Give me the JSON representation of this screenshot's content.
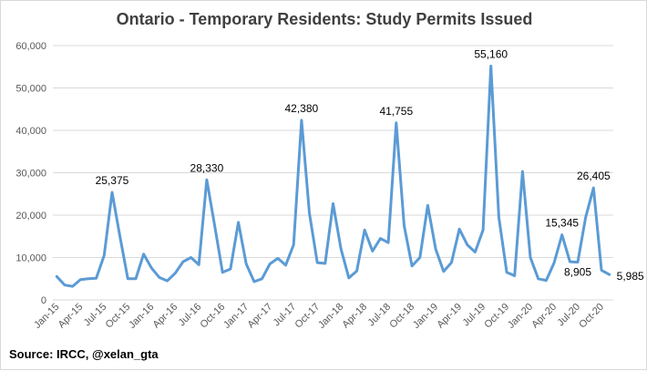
{
  "source_note": "Source: IRCC, @xelan_gta",
  "chart_data": {
    "type": "line",
    "title": "Ontario - Temporary Residents: Study Permits Issued",
    "xlabel": "",
    "ylabel": "",
    "ylim": [
      0,
      60000
    ],
    "yticks": [
      "0",
      "10,000",
      "20,000",
      "30,000",
      "40,000",
      "50,000",
      "60,000"
    ],
    "grid": true,
    "line_color": "#5b9bd5",
    "x": [
      "Jan-15",
      "Feb-15",
      "Mar-15",
      "Apr-15",
      "May-15",
      "Jun-15",
      "Jul-15",
      "Aug-15",
      "Sep-15",
      "Oct-15",
      "Nov-15",
      "Dec-15",
      "Jan-16",
      "Feb-16",
      "Mar-16",
      "Apr-16",
      "May-16",
      "Jun-16",
      "Jul-16",
      "Aug-16",
      "Sep-16",
      "Oct-16",
      "Nov-16",
      "Dec-16",
      "Jan-17",
      "Feb-17",
      "Mar-17",
      "Apr-17",
      "May-17",
      "Jun-17",
      "Jul-17",
      "Aug-17",
      "Sep-17",
      "Oct-17",
      "Nov-17",
      "Dec-17",
      "Jan-18",
      "Feb-18",
      "Mar-18",
      "Apr-18",
      "May-18",
      "Jun-18",
      "Jul-18",
      "Aug-18",
      "Sep-18",
      "Oct-18",
      "Nov-18",
      "Dec-18",
      "Jan-19",
      "Feb-19",
      "Mar-19",
      "Apr-19",
      "May-19",
      "Jun-19",
      "Jul-19",
      "Aug-19",
      "Sep-19",
      "Oct-19",
      "Nov-19",
      "Dec-19",
      "Jan-20",
      "Feb-20",
      "Mar-20",
      "Apr-20",
      "May-20",
      "Jun-20",
      "Jul-20",
      "Aug-20",
      "Sep-20",
      "Oct-20",
      "Nov-20"
    ],
    "xticks": [
      "Jan-15",
      "Apr-15",
      "Jul-15",
      "Oct-15",
      "Jan-16",
      "Apr-16",
      "Jul-16",
      "Oct-16",
      "Jan-17",
      "Apr-17",
      "Jul-17",
      "Oct-17",
      "Jan-18",
      "Apr-18",
      "Jul-18",
      "Oct-18",
      "Jan-19",
      "Apr-19",
      "Jul-19",
      "Oct-19",
      "Jan-20",
      "Apr-20",
      "Jul-20",
      "Oct-20"
    ],
    "values": [
      5500,
      3500,
      3200,
      4800,
      5000,
      5100,
      10500,
      25375,
      15000,
      5000,
      5000,
      10800,
      7500,
      5300,
      4500,
      6300,
      9000,
      10000,
      8300,
      28330,
      17500,
      6500,
      7300,
      18300,
      8500,
      4300,
      5000,
      8500,
      9800,
      8200,
      13000,
      42380,
      20500,
      8800,
      8600,
      22700,
      12000,
      5200,
      6800,
      16500,
      11500,
      14500,
      13500,
      41755,
      17500,
      8000,
      10000,
      22300,
      12000,
      6700,
      8800,
      16700,
      13000,
      11300,
      16500,
      55160,
      19500,
      6500,
      5700,
      30300,
      10000,
      5000,
      4600,
      8700,
      15345,
      9000,
      8905,
      19500,
      26405,
      7000,
      5985
    ],
    "data_labels": [
      {
        "index": 7,
        "text": "25,375"
      },
      {
        "index": 19,
        "text": "28,330"
      },
      {
        "index": 31,
        "text": "42,380"
      },
      {
        "index": 43,
        "text": "41,755"
      },
      {
        "index": 55,
        "text": "55,160"
      },
      {
        "index": 64,
        "text": "15,345"
      },
      {
        "index": 66,
        "text": "8,905"
      },
      {
        "index": 68,
        "text": "26,405"
      },
      {
        "index": 70,
        "text": "5,985"
      }
    ]
  }
}
